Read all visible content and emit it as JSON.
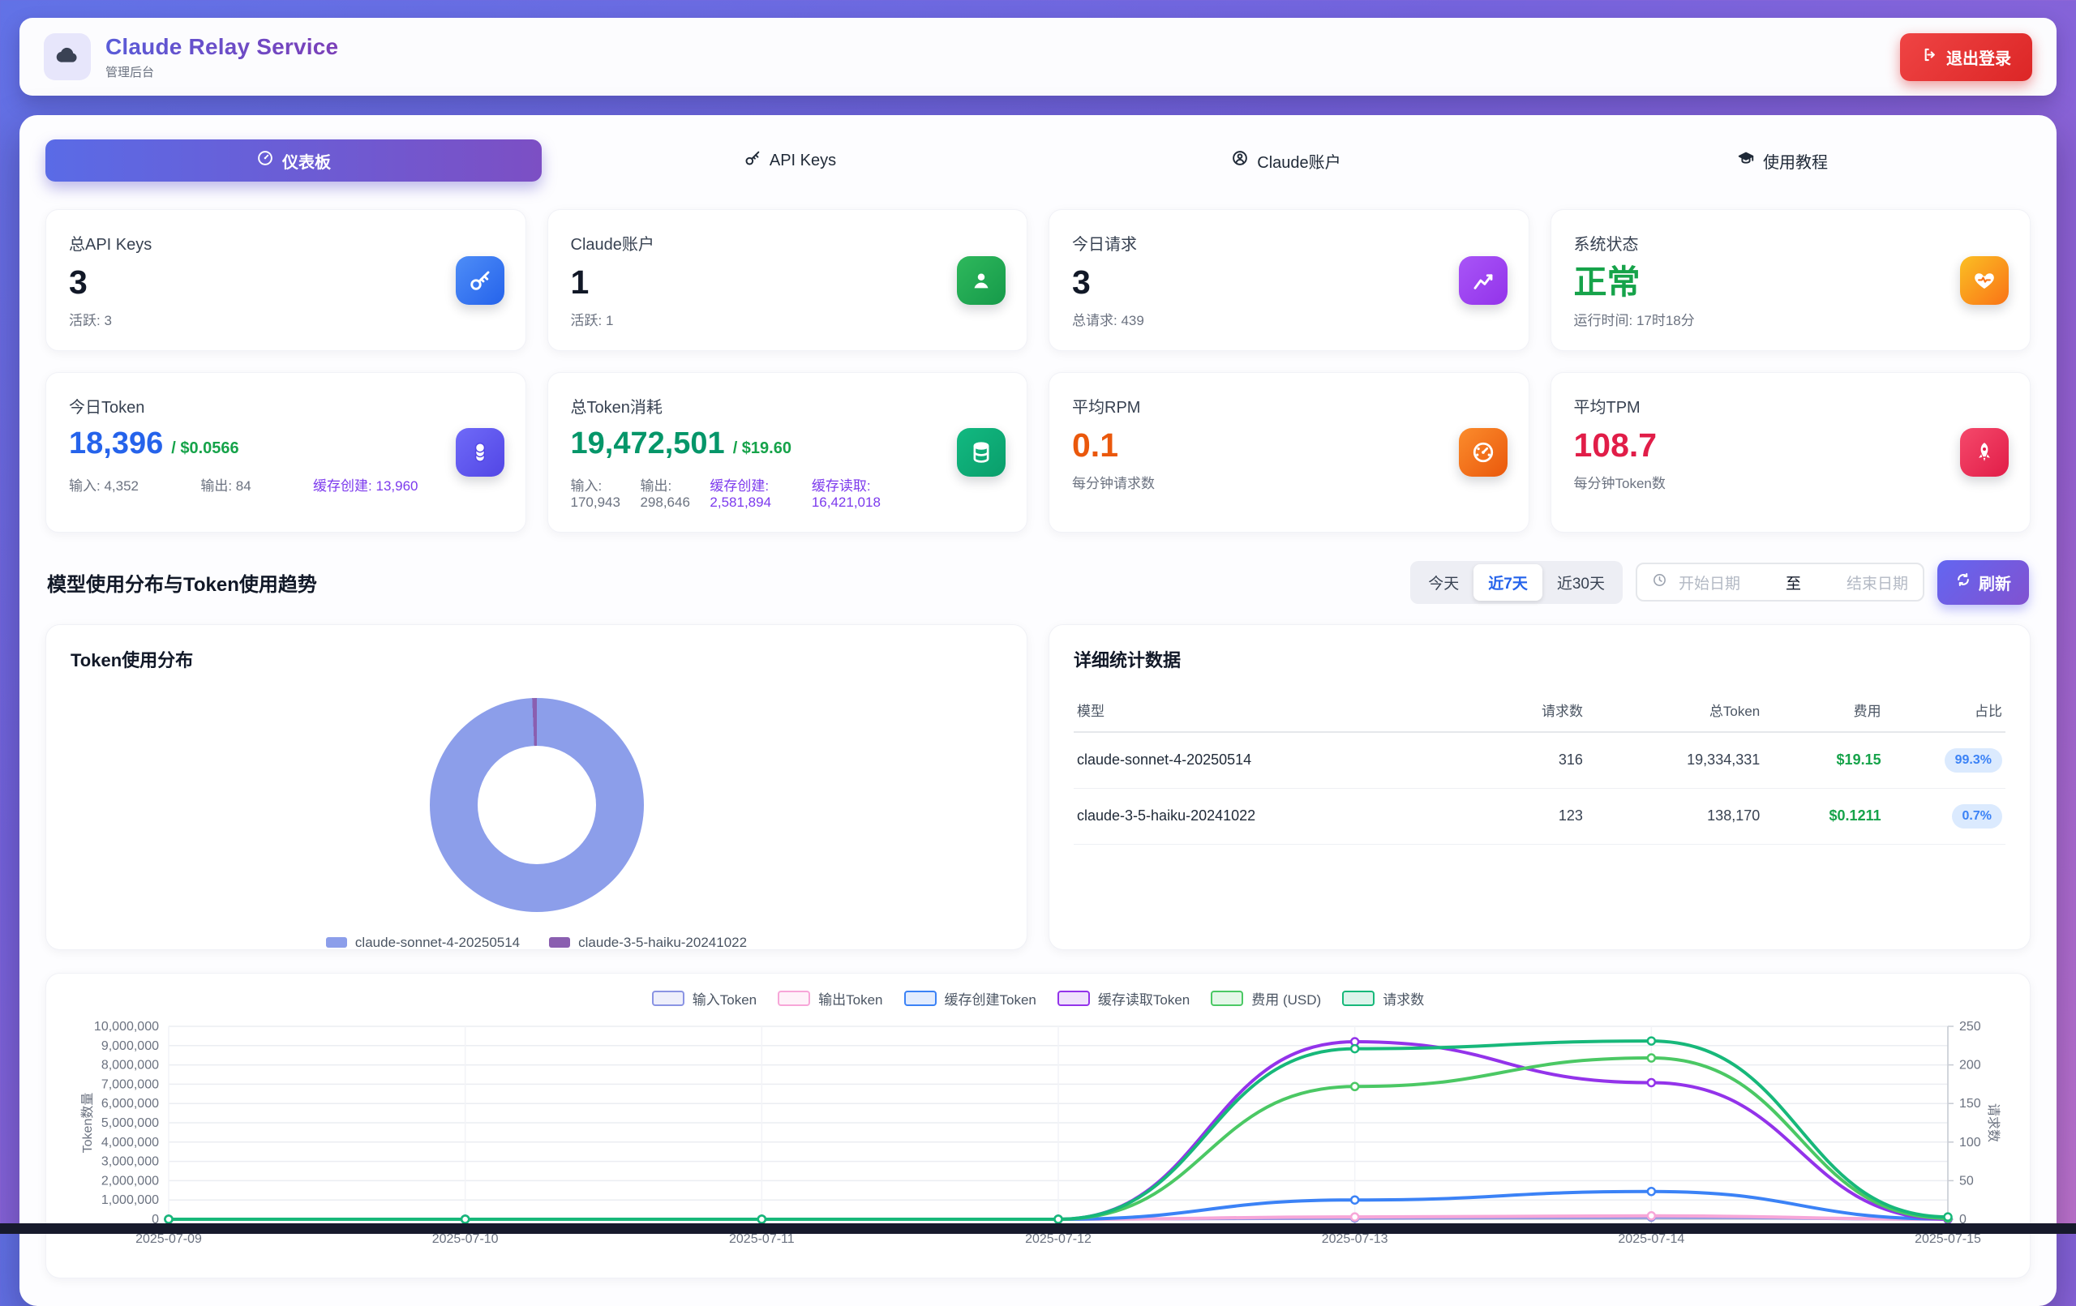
{
  "header": {
    "title": "Claude Relay Service",
    "subtitle": "管理后台",
    "logout_label": "退出登录"
  },
  "tabs": [
    {
      "label": "仪表板",
      "active": true
    },
    {
      "label": "API Keys",
      "active": false
    },
    {
      "label": "Claude账户",
      "active": false
    },
    {
      "label": "使用教程",
      "active": false
    }
  ],
  "stats_row1": [
    {
      "label": "总API Keys",
      "value": "3",
      "sub": "活跃: 3",
      "icon": "key-icon",
      "tile": [
        "#4e8df7",
        "#2563eb"
      ]
    },
    {
      "label": "Claude账户",
      "value": "1",
      "sub": "活跃: 1",
      "icon": "user-icon",
      "tile": [
        "#2eb85c",
        "#169a4a"
      ]
    },
    {
      "label": "今日请求",
      "value": "3",
      "sub": "总请求: 439",
      "icon": "chart-line-icon",
      "tile": [
        "#a855f7",
        "#9333ea"
      ]
    },
    {
      "label": "系统状态",
      "value": "正常",
      "value_color": "#16a34a",
      "sub": "运行时间: 17时18分",
      "icon": "heart-pulse-icon",
      "tile": [
        "#fbbf24",
        "#f97316"
      ]
    }
  ],
  "stats_row2": [
    {
      "label": "今日Token",
      "value": "18,396",
      "unit": "/ $0.0566",
      "value_color": "#2563eb",
      "details": [
        "输入: 4,352",
        "输出: 84",
        "缓存创建: 13,960"
      ],
      "icon": "coins-icon",
      "tile": [
        "#6f6af8",
        "#5246e5"
      ]
    },
    {
      "label": "总Token消耗",
      "value": "19,472,501",
      "unit": "/ $19.60",
      "value_color": "#059669",
      "details": [
        "输入: 170,943",
        "输出: 298,646",
        "缓存创建: 2,581,894",
        "缓存读取: 16,421,018"
      ],
      "icon": "database-icon",
      "tile": [
        "#12b981",
        "#0a9e6b"
      ]
    },
    {
      "label": "平均RPM",
      "value": "0.1",
      "value_color": "#ea580c",
      "sub": "每分钟请求数",
      "icon": "gauge-icon",
      "tile": [
        "#fb8c2c",
        "#ea580c"
      ]
    },
    {
      "label": "平均TPM",
      "value": "108.7",
      "value_color": "#e11d48",
      "sub": "每分钟Token数",
      "icon": "rocket-icon",
      "tile": [
        "#f5496b",
        "#e11d48"
      ]
    }
  ],
  "section": {
    "title": "模型使用分布与Token使用趋势",
    "filters": [
      "今天",
      "近7天",
      "近30天"
    ],
    "active_filter": "近7天",
    "date_start_placeholder": "开始日期",
    "date_separator": "至",
    "date_end_placeholder": "结束日期",
    "refresh_label": "刷新"
  },
  "stats_table": {
    "title": "详细统计数据",
    "headers": [
      "模型",
      "请求数",
      "总Token",
      "费用",
      "占比"
    ],
    "rows": [
      {
        "model": "claude-sonnet-4-20250514",
        "requests": "316",
        "tokens": "19,334,331",
        "cost": "$19.15",
        "share": "99.3%"
      },
      {
        "model": "claude-3-5-haiku-20241022",
        "requests": "123",
        "tokens": "138,170",
        "cost": "$0.1211",
        "share": "0.7%"
      }
    ]
  },
  "chart_data": [
    {
      "type": "pie",
      "title": "Token使用分布",
      "labels": [
        "claude-sonnet-4-20250514",
        "claude-3-5-haiku-20241022"
      ],
      "values": [
        99.3,
        0.7
      ],
      "unit": "%",
      "colors": [
        "#8c9eea",
        "#8a5fb0"
      ],
      "inner_radius_ratio": 0.55,
      "legend_position": "bottom"
    },
    {
      "type": "line",
      "title": "Token使用趋势",
      "x": [
        "2025-07-09",
        "2025-07-10",
        "2025-07-11",
        "2025-07-12",
        "2025-07-13",
        "2025-07-14",
        "2025-07-15"
      ],
      "y_left": {
        "label": "Token数量",
        "max": 10000000,
        "ticks": [
          "0",
          "1,000,000",
          "2,000,000",
          "3,000,000",
          "4,000,000",
          "5,000,000",
          "6,000,000",
          "7,000,000",
          "8,000,000",
          "9,000,000",
          "10,000,000"
        ]
      },
      "y_right": {
        "label": "请求数",
        "max": 250,
        "ticks": [
          "0",
          "50",
          "100",
          "150",
          "200",
          "250"
        ]
      },
      "grid": true,
      "legend_position": "top",
      "series": [
        {
          "name": "输入Token",
          "color": "#8a94e3",
          "axis": "left",
          "display_scale": 1,
          "values": [
            0,
            0,
            0,
            0,
            60000,
            106000,
            4352
          ]
        },
        {
          "name": "输出Token",
          "color": "#f7a6d8",
          "axis": "left",
          "display_scale": 1,
          "values": [
            0,
            0,
            0,
            0,
            120000,
            178000,
            84
          ]
        },
        {
          "name": "缓存创建Token",
          "color": "#3b82f6",
          "axis": "left",
          "display_scale": 1,
          "values": [
            0,
            0,
            0,
            0,
            1000000,
            1440000,
            13960
          ]
        },
        {
          "name": "缓存读取Token",
          "color": "#9333ea",
          "axis": "left",
          "display_scale": 1,
          "values": [
            0,
            0,
            0,
            0,
            9200000,
            7080000,
            0
          ]
        },
        {
          "name": "费用 (USD)",
          "color": "#4bc864",
          "axis": "right",
          "display_scale": 20,
          "values": [
            0,
            0,
            0,
            0,
            8.6,
            10.45,
            0.06
          ]
        },
        {
          "name": "请求数",
          "color": "#17b87a",
          "axis": "right",
          "display_scale": 1,
          "values": [
            0,
            0,
            0,
            0,
            221,
            231,
            3
          ]
        }
      ]
    }
  ]
}
